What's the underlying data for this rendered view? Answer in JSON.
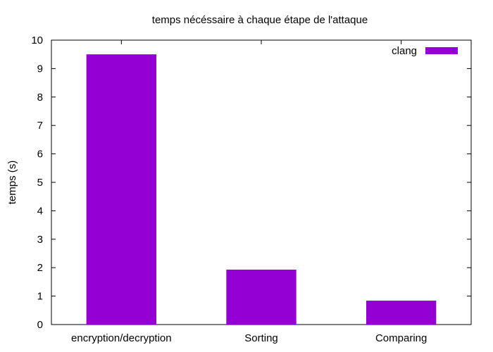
{
  "chart_data": {
    "type": "bar",
    "title": "temps nécéssaire à chaque étape de l'attaque",
    "xlabel": "",
    "ylabel": "temps (s)",
    "categories": [
      "encryption/decryption",
      "Sorting",
      "Comparing"
    ],
    "series": [
      {
        "name": "clang",
        "values": [
          9.5,
          1.93,
          0.84
        ],
        "color": "#9400d3"
      }
    ],
    "ylim": [
      0,
      10
    ],
    "yticks": [
      "0",
      "1",
      "2",
      "3",
      "4",
      "5",
      "6",
      "7",
      "8",
      "9",
      "10"
    ],
    "grid": false,
    "legend_position": "top-right"
  }
}
